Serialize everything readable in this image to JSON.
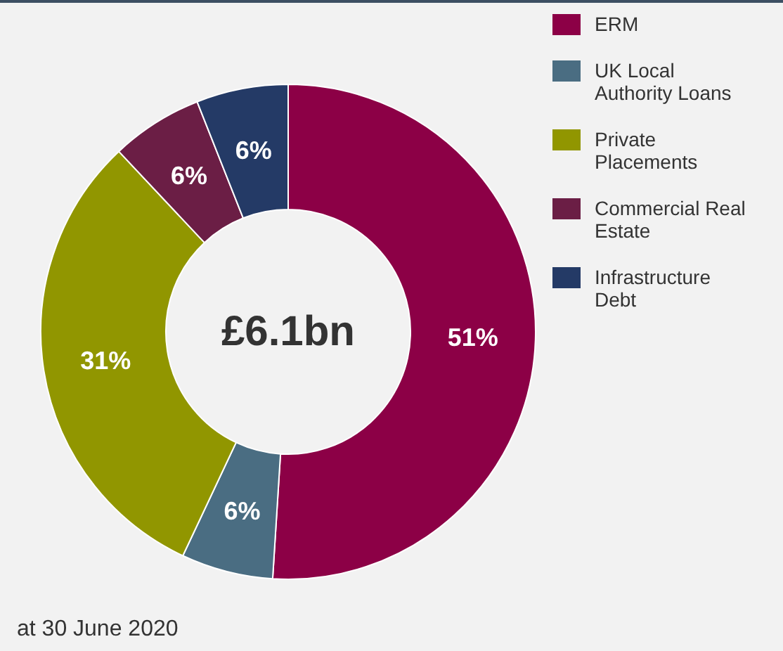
{
  "chart_data": {
    "type": "donut",
    "categories": [
      "ERM",
      "UK Local Authority Loans",
      "Private Placements",
      "Commercial Real Estate",
      "Infrastructure Debt"
    ],
    "values": [
      51,
      6,
      31,
      6,
      6
    ],
    "colors": [
      "#8c0046",
      "#4a6d82",
      "#919600",
      "#6b1e45",
      "#243a66"
    ],
    "value_labels": [
      "51%",
      "6%",
      "31%",
      "6%",
      "6%"
    ],
    "legend": "right",
    "annotations": [
      "£6.1bn",
      "at 30 June 2020"
    ]
  }
}
